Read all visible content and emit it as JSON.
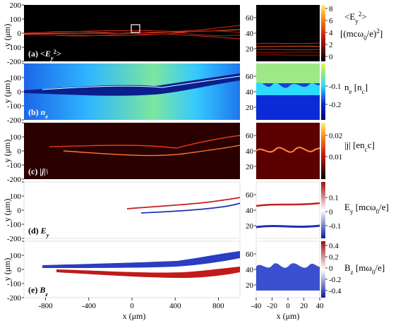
{
  "axes": {
    "y_label": "y (μm)",
    "x_label_main": "x (μm)",
    "x_label_zoom": "x (μm)",
    "main_y_ticks": [
      "200",
      "100",
      "0",
      "-100",
      "-200"
    ],
    "main_x_ticks": [
      "-800",
      "-400",
      "0",
      "400",
      "800"
    ],
    "zoom_y_ticks": [
      "60",
      "40",
      "20"
    ],
    "zoom_x_ticks": [
      "-40",
      "-20",
      "0",
      "20",
      "40"
    ]
  },
  "panels": [
    {
      "id": "a",
      "label_prefix": "(a) ",
      "label_text": "<E",
      "label_sub": "y",
      "label_sup": "2",
      "label_tail": ">",
      "cbar_title_line1": "<E",
      "cbar_title_line1_sub": "y",
      "cbar_title_line1_sup": "2",
      "cbar_title_line1_tail": ">",
      "cbar_title_line2": "[(mcω",
      "cbar_title_line2_sub": "0",
      "cbar_title_line2_tail": "/e)",
      "cbar_title_line2_sup": "2",
      "cbar_title_line2_end": "]",
      "cbar_ticks": [
        "8",
        "6",
        "4",
        "2",
        "0"
      ],
      "colormap": "hot"
    },
    {
      "id": "b",
      "label_prefix": "(b) ",
      "label_text": "n",
      "label_sub": "e",
      "cbar_title": "n",
      "cbar_title_sub": "e",
      "cbar_title_tail": " [n",
      "cbar_title_tail_sub": "c",
      "cbar_title_end": "]",
      "cbar_ticks": [
        "-0.1",
        "-0.2"
      ],
      "colormap": "jet"
    },
    {
      "id": "c",
      "label_prefix": "(c) ",
      "label_text": "|j|\\",
      "cbar_title": "|j| [en",
      "cbar_title_sub": "c",
      "cbar_title_end": "c]",
      "cbar_ticks": [
        "0.02",
        "0.01"
      ],
      "colormap": "hot"
    },
    {
      "id": "d",
      "label_prefix": "(d) ",
      "label_text": "E",
      "label_sub": "y",
      "cbar_title": "E",
      "cbar_title_sub": "y",
      "cbar_title_tail": " [mcω",
      "cbar_title_tail_sub": "0",
      "cbar_title_end": "/e]",
      "cbar_ticks": [
        "0.1",
        "0",
        "-0.1"
      ],
      "colormap": "bwr"
    },
    {
      "id": "e",
      "label_prefix": "(e) ",
      "label_text": "B",
      "label_sub": "z",
      "cbar_title": "B",
      "cbar_title_sub": "z",
      "cbar_title_tail": " [mω",
      "cbar_title_tail_sub": "0",
      "cbar_title_end": "/e]",
      "cbar_ticks": [
        "0.4",
        "0.2",
        "0",
        "-0.2",
        "-0.4"
      ],
      "colormap": "bwr"
    }
  ],
  "colors": {
    "hot_black": "#000000",
    "hot_red": "#c81e0a",
    "hot_yellow": "#ffee55",
    "jet_blue": "#0a2bd6",
    "jet_cyan": "#2ed9ff",
    "jet_green": "#9cf06a",
    "bwr_blue": "#0a1f9e",
    "bwr_red": "#a01010",
    "white": "#ffffff"
  }
}
